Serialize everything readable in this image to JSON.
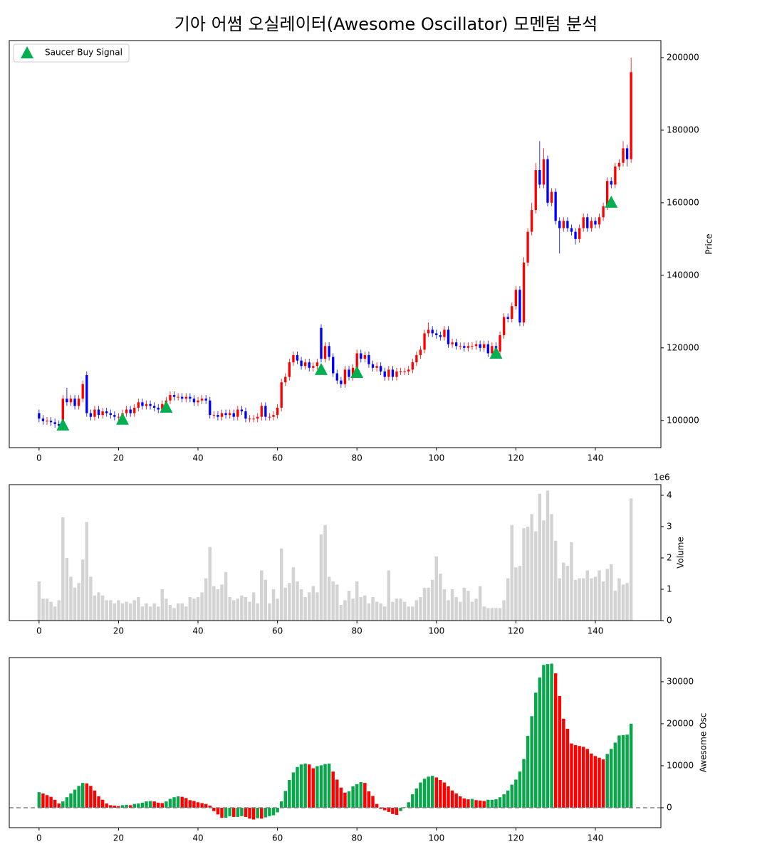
{
  "title": "기아 어썸 오실레이터(Awesome Oscillator) 모멘텀 분석",
  "chart_data": [
    {
      "type": "candlestick",
      "ylabel": "Price",
      "x": [
        0,
        1,
        2,
        3,
        4,
        5,
        6,
        7,
        8,
        9,
        10,
        11,
        12,
        13,
        14,
        15,
        16,
        17,
        18,
        19,
        20,
        21,
        22,
        23,
        24,
        25,
        26,
        27,
        28,
        29,
        30,
        31,
        32,
        33,
        34,
        35,
        36,
        37,
        38,
        39,
        40,
        41,
        42,
        43,
        44,
        45,
        46,
        47,
        48,
        49,
        50,
        51,
        52,
        53,
        54,
        55,
        56,
        57,
        58,
        59,
        60,
        61,
        62,
        63,
        64,
        65,
        66,
        67,
        68,
        69,
        70,
        71,
        72,
        73,
        74,
        75,
        76,
        77,
        78,
        79,
        80,
        81,
        82,
        83,
        84,
        85,
        86,
        87,
        88,
        89,
        90,
        91,
        92,
        93,
        94,
        95,
        96,
        97,
        98,
        99,
        100,
        101,
        102,
        103,
        104,
        105,
        106,
        107,
        108,
        109,
        110,
        111,
        112,
        113,
        114,
        115,
        116,
        117,
        118,
        119,
        120,
        121,
        122,
        123,
        124,
        125,
        126,
        127,
        128,
        129,
        130,
        131,
        132,
        133,
        134,
        135,
        136,
        137,
        138,
        139,
        140,
        141,
        142,
        143,
        144,
        145,
        146,
        147,
        148,
        149
      ],
      "open": [
        102000,
        100500,
        99800,
        99900,
        99500,
        99000,
        98500,
        106000,
        105000,
        106000,
        104000,
        106000,
        112500,
        102000,
        101000,
        103000,
        101500,
        102500,
        102000,
        101500,
        101000,
        101000,
        102000,
        103000,
        102000,
        103500,
        105000,
        104000,
        104500,
        104000,
        103500,
        103000,
        104500,
        105500,
        107000,
        106500,
        106500,
        106000,
        106500,
        106000,
        105000,
        105500,
        106000,
        105500,
        101500,
        101500,
        101000,
        102000,
        101500,
        102000,
        101000,
        103000,
        102500,
        100500,
        100500,
        100500,
        101000,
        104000,
        101000,
        101000,
        101500,
        103500,
        110500,
        112000,
        116000,
        118000,
        116500,
        115000,
        116000,
        114500,
        115000,
        125500,
        117000,
        120500,
        117500,
        113000,
        111000,
        110000,
        114000,
        112000,
        114500,
        118500,
        117000,
        118000,
        115500,
        114500,
        115000,
        113500,
        112000,
        114000,
        112000,
        113500,
        113500,
        113500,
        114000,
        116000,
        118000,
        119500,
        124000,
        125000,
        124000,
        123500,
        123000,
        125000,
        121000,
        121500,
        120500,
        120500,
        120000,
        120500,
        120500,
        121000,
        120000,
        121000,
        118500,
        120500,
        119000,
        123500,
        128500,
        128000,
        131500,
        136000,
        127000,
        143500,
        152000,
        158000,
        169000,
        165000,
        172000,
        160000,
        163000,
        155000,
        153000,
        155000,
        153000,
        152000,
        150000,
        153000,
        156000,
        153000,
        155000,
        154000,
        156000,
        159000,
        166000,
        165000,
        170000,
        171000,
        175000,
        172000
      ],
      "high": [
        103000,
        101500,
        100900,
        100900,
        100500,
        100000,
        107000,
        109000,
        107000,
        107000,
        107000,
        111000,
        113500,
        103000,
        104000,
        104000,
        103500,
        103500,
        103000,
        102500,
        102000,
        103000,
        104000,
        104000,
        104500,
        106000,
        106000,
        105500,
        105500,
        105000,
        104500,
        105500,
        106500,
        108000,
        108000,
        107500,
        107500,
        107500,
        107500,
        107000,
        106500,
        107000,
        107000,
        106500,
        102500,
        102500,
        103000,
        103000,
        103000,
        103000,
        104000,
        104000,
        103500,
        101500,
        101500,
        102000,
        105000,
        105000,
        102000,
        102500,
        104500,
        111500,
        113000,
        117000,
        119000,
        119000,
        117500,
        117000,
        117000,
        116000,
        117000,
        126500,
        121500,
        121500,
        118500,
        114000,
        112000,
        115000,
        115000,
        115500,
        119500,
        119500,
        119000,
        119000,
        116500,
        116000,
        116000,
        114500,
        115000,
        115000,
        114500,
        114500,
        114500,
        115000,
        117000,
        119000,
        120500,
        125000,
        127000,
        126000,
        125000,
        124500,
        126000,
        126000,
        122500,
        122500,
        121500,
        121500,
        121500,
        121500,
        122000,
        122000,
        122000,
        122000,
        121500,
        121500,
        124500,
        129500,
        129500,
        132500,
        137000,
        137000,
        145000,
        153000,
        160000,
        171000,
        177000,
        175000,
        173000,
        164000,
        164000,
        156000,
        156000,
        156000,
        154000,
        153000,
        154000,
        157000,
        157000,
        156000,
        156000,
        157000,
        160000,
        167000,
        167000,
        171000,
        172000,
        177000,
        176000,
        200000
      ],
      "low": [
        99500,
        98800,
        98800,
        98500,
        98000,
        97500,
        97500,
        104000,
        104000,
        103000,
        103000,
        105000,
        101000,
        100000,
        100000,
        100500,
        100500,
        101000,
        100500,
        100000,
        100000,
        100000,
        101000,
        101000,
        101000,
        102500,
        103000,
        103000,
        103000,
        102500,
        102000,
        102000,
        103500,
        104500,
        105500,
        105500,
        105000,
        105000,
        105000,
        104000,
        104000,
        104500,
        104500,
        100500,
        100500,
        100000,
        100000,
        100500,
        100500,
        100000,
        100000,
        101500,
        99500,
        99500,
        99500,
        99500,
        100000,
        100000,
        100000,
        100000,
        100500,
        102500,
        109500,
        111000,
        115000,
        115500,
        114000,
        114000,
        113500,
        113500,
        114000,
        116000,
        116000,
        116500,
        112000,
        110000,
        109000,
        109000,
        111000,
        111000,
        113500,
        116000,
        116000,
        114500,
        113500,
        113500,
        112500,
        111000,
        111000,
        111000,
        111000,
        112500,
        112500,
        112500,
        113000,
        115000,
        117000,
        118500,
        123000,
        123000,
        122500,
        122000,
        122000,
        120000,
        120000,
        119500,
        119500,
        119000,
        119000,
        119500,
        119500,
        119000,
        119000,
        117500,
        117500,
        118000,
        118000,
        122500,
        127000,
        127000,
        130500,
        126000,
        126000,
        142500,
        151000,
        157000,
        164000,
        164000,
        159000,
        159000,
        154000,
        146000,
        152000,
        152000,
        151000,
        148500,
        149000,
        152000,
        152000,
        152000,
        153000,
        153000,
        155000,
        158000,
        164000,
        164000,
        169000,
        170000,
        170000,
        171000
      ],
      "close": [
        100500,
        99800,
        99900,
        99500,
        99000,
        98500,
        106000,
        105000,
        106000,
        104000,
        106000,
        110000,
        102000,
        101000,
        103000,
        101500,
        102500,
        102000,
        101500,
        101000,
        101000,
        102000,
        103000,
        102000,
        103500,
        105000,
        104000,
        104500,
        104000,
        103500,
        103000,
        104500,
        105500,
        107000,
        106500,
        106500,
        106000,
        106500,
        106000,
        105000,
        105500,
        106000,
        105500,
        101500,
        101500,
        101000,
        102000,
        101500,
        102000,
        101000,
        103000,
        102500,
        100500,
        100500,
        100500,
        101000,
        104000,
        101000,
        101000,
        101500,
        103500,
        110500,
        112000,
        116000,
        118000,
        116500,
        115000,
        116000,
        114500,
        115000,
        116000,
        117000,
        120500,
        117500,
        113000,
        111000,
        110000,
        114000,
        112000,
        114500,
        118500,
        117000,
        118000,
        115500,
        114500,
        115000,
        113500,
        112000,
        114000,
        112000,
        113500,
        113500,
        113500,
        114000,
        116000,
        118000,
        119500,
        124000,
        125000,
        124000,
        123500,
        123000,
        125000,
        121000,
        121500,
        120500,
        120500,
        120000,
        120500,
        120500,
        121000,
        120000,
        121000,
        118500,
        120500,
        119000,
        123500,
        128500,
        128000,
        131500,
        136000,
        127000,
        143500,
        152000,
        158000,
        169000,
        165000,
        172000,
        160000,
        163000,
        155000,
        153000,
        155000,
        153000,
        152000,
        150000,
        153000,
        156000,
        153000,
        155000,
        154000,
        156000,
        159000,
        166000,
        165000,
        170000,
        171000,
        175000,
        172000,
        196000
      ],
      "up_color": "#ff0000",
      "down_color": "#0000ff",
      "signals": {
        "name": "Saucer Buy Signal",
        "color": "#00b050",
        "x": [
          6,
          21,
          32,
          71,
          80,
          115,
          144
        ],
        "values": [
          98600,
          100200,
          103500,
          113900,
          113100,
          118400,
          160000
        ]
      },
      "legend": "upper left",
      "xlim": [
        -7.5,
        156.5
      ],
      "xticks": [
        0,
        20,
        40,
        60,
        80,
        100,
        120,
        140
      ],
      "ylim": [
        92500,
        204700
      ],
      "yticks": [
        100000,
        120000,
        140000,
        160000,
        180000,
        200000
      ]
    },
    {
      "type": "bar",
      "ylabel": "Volume",
      "y_offset_label": "1e6",
      "color": "#d3d3d3",
      "values": [
        1250000,
        700000,
        700000,
        600000,
        450000,
        650000,
        3300000,
        2000000,
        1400000,
        1050000,
        1200000,
        1950000,
        3150000,
        1400000,
        800000,
        900000,
        800000,
        650000,
        650000,
        550000,
        650000,
        550000,
        600000,
        550000,
        650000,
        750000,
        450000,
        550000,
        450000,
        550000,
        450000,
        1000000,
        700000,
        500000,
        400000,
        550000,
        550000,
        450000,
        750000,
        700000,
        750000,
        900000,
        1350000,
        2350000,
        1100000,
        1000000,
        1150000,
        1550000,
        750000,
        650000,
        700000,
        800000,
        750000,
        600000,
        900000,
        550000,
        1600000,
        1300000,
        550000,
        1000000,
        700000,
        2300000,
        1050000,
        1200000,
        1700000,
        1250000,
        1000000,
        750000,
        900000,
        1100000,
        900000,
        2750000,
        3050000,
        1400000,
        1250000,
        1150000,
        500000,
        650000,
        950000,
        700000,
        1250000,
        750000,
        800000,
        550000,
        750000,
        600000,
        550000,
        450000,
        1600000,
        600000,
        700000,
        700000,
        600000,
        450000,
        450000,
        650000,
        750000,
        1050000,
        1050000,
        1300000,
        2050000,
        1500000,
        1000000,
        650000,
        1000000,
        750000,
        600000,
        1050000,
        950000,
        600000,
        700000,
        1100000,
        450000,
        400000,
        400000,
        400000,
        400000,
        650000,
        1350000,
        3050000,
        1700000,
        1750000,
        2950000,
        3000000,
        3400000,
        2850000,
        4050000,
        3200000,
        4150000,
        3400000,
        2550000,
        1350000,
        1850000,
        1750000,
        2500000,
        1300000,
        1350000,
        1350000,
        1600000,
        1350000,
        1400000,
        1600000,
        1250000,
        1650000,
        1800000,
        950000,
        1350000,
        1150000,
        1200000,
        3900000
      ],
      "xlim": [
        -7.5,
        156.5
      ],
      "xticks": [
        0,
        20,
        40,
        60,
        80,
        100,
        120,
        140
      ],
      "ylim": [
        0,
        4340000
      ],
      "yticks": [
        0,
        {
          "value": 1000000,
          "label": "1"
        },
        {
          "value": 2000000,
          "label": "2"
        },
        {
          "value": 3000000,
          "label": "3"
        },
        {
          "value": 4000000,
          "label": "4"
        }
      ]
    },
    {
      "type": "bar",
      "ylabel": "Awesome Osc",
      "up_color": "#0aa64b",
      "down_color": "#ff0000",
      "values": [
        3700,
        3400,
        3000,
        2600,
        1900,
        1000,
        1500,
        2500,
        3400,
        4300,
        5200,
        5900,
        5800,
        5200,
        4100,
        2700,
        1900,
        1000,
        600,
        500,
        400,
        600,
        700,
        600,
        900,
        1000,
        1200,
        1500,
        1600,
        1500,
        1200,
        1100,
        1500,
        2100,
        2500,
        2700,
        2600,
        2300,
        1800,
        1600,
        1300,
        1100,
        900,
        500,
        -800,
        -1600,
        -2400,
        -2400,
        -2000,
        -2200,
        -2200,
        -2000,
        -2200,
        -2600,
        -2800,
        -2500,
        -2600,
        -2300,
        -2000,
        -1800,
        -1100,
        1500,
        4000,
        6600,
        8400,
        9700,
        10300,
        10500,
        10300,
        9400,
        9900,
        10100,
        10400,
        10500,
        8600,
        6700,
        4800,
        3600,
        3900,
        5100,
        5600,
        6100,
        5900,
        3900,
        2800,
        900,
        -300,
        -600,
        -1000,
        -1500,
        -1700,
        -800,
        100,
        1300,
        3200,
        4600,
        6000,
        6900,
        7400,
        7600,
        7200,
        6600,
        6000,
        5100,
        4100,
        3400,
        2700,
        2200,
        2000,
        2100,
        1800,
        1700,
        1600,
        1900,
        1900,
        2000,
        2500,
        3200,
        4100,
        5500,
        6700,
        8600,
        11600,
        17100,
        21800,
        27400,
        31000,
        34000,
        34200,
        34300,
        32000,
        26600,
        21200,
        18800,
        15300,
        14900,
        14700,
        14500,
        14000,
        12900,
        12300,
        11900,
        11500,
        12800,
        14000,
        15500,
        17200,
        17300,
        17400,
        20000
      ],
      "xlim": [
        -7.5,
        156.5
      ],
      "xticks": [
        0,
        20,
        40,
        60,
        80,
        100,
        120,
        140
      ],
      "ylim": [
        -4750,
        35750
      ],
      "yticks": [
        0,
        10000,
        20000,
        30000
      ]
    }
  ]
}
